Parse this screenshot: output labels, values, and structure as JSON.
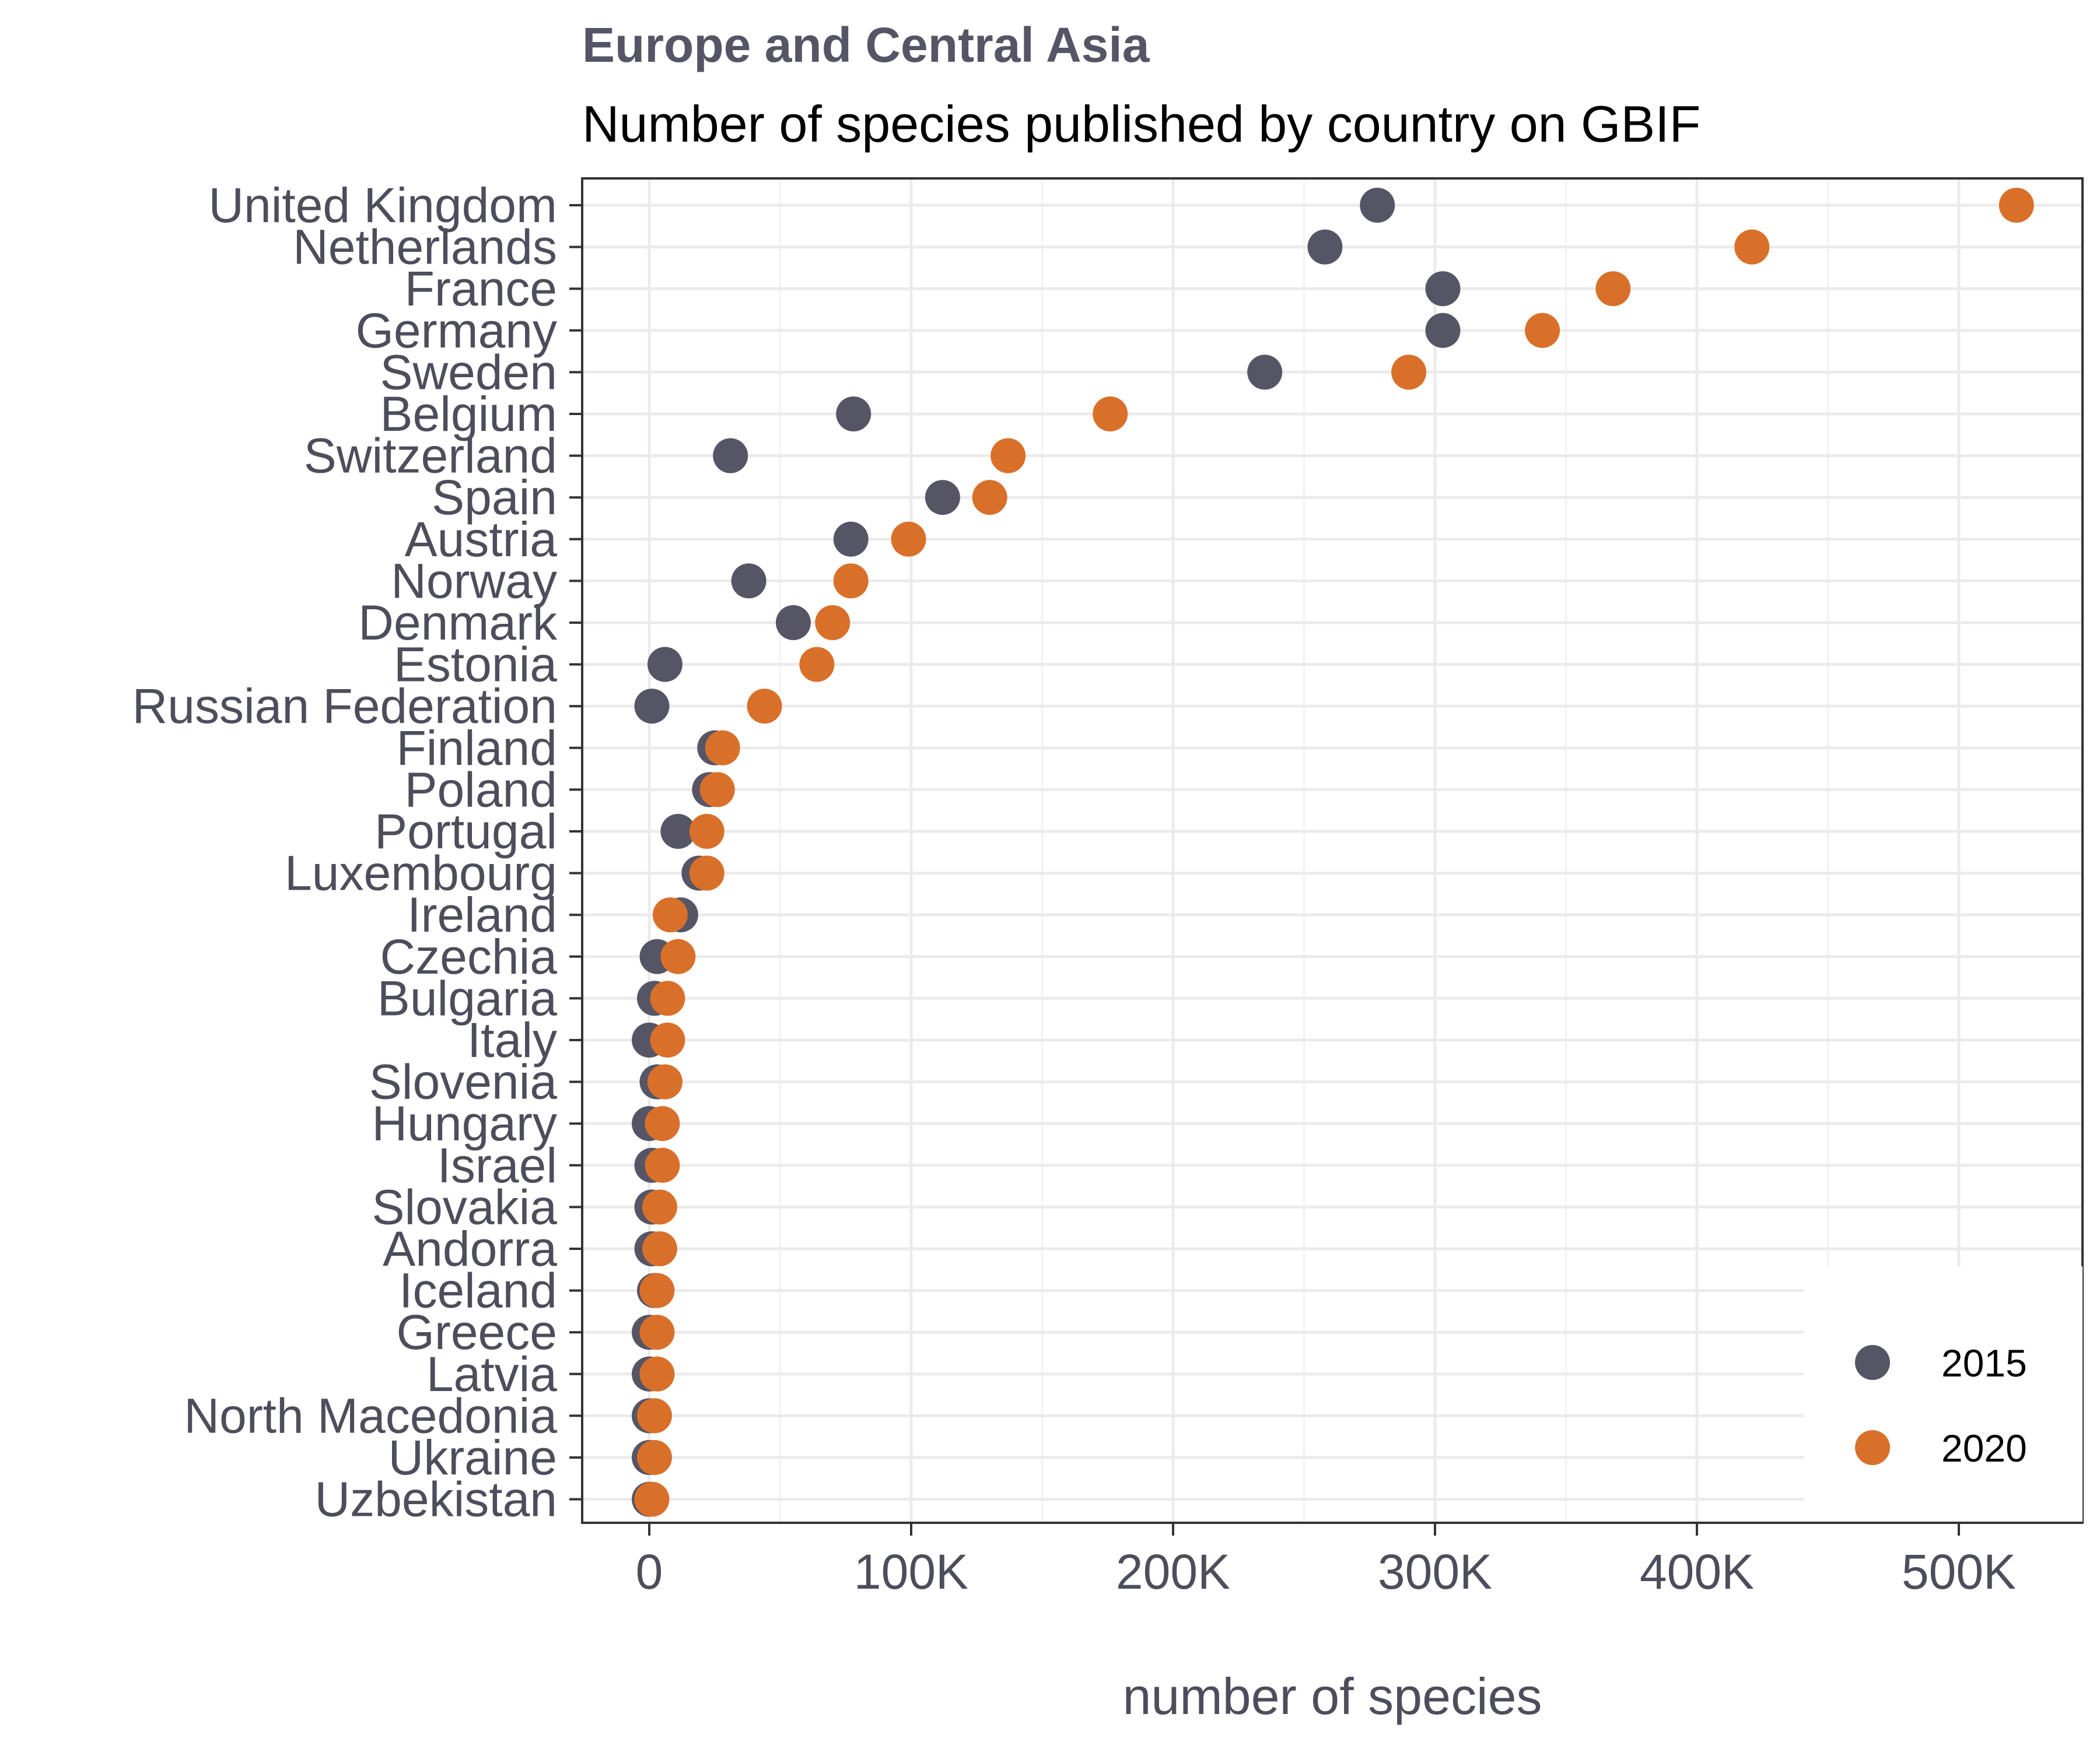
{
  "chart_data": {
    "type": "scatter",
    "title": "Europe and Central Asia",
    "subtitle": "Number of species published by country on GBIF",
    "xlabel": "number of species",
    "ylabel": "",
    "xlim": [
      -20000,
      545000
    ],
    "x_ticks": [
      0,
      100000,
      200000,
      300000,
      400000,
      500000
    ],
    "x_tick_labels": [
      "0",
      "100K",
      "200K",
      "300K",
      "400K",
      "500K"
    ],
    "categories": [
      "United Kingdom",
      "Netherlands",
      "France",
      "Germany",
      "Sweden",
      "Belgium",
      "Switzerland",
      "Spain",
      "Austria",
      "Norway",
      "Denmark",
      "Estonia",
      "Russian Federation",
      "Finland",
      "Poland",
      "Portugal",
      "Luxembourg",
      "Ireland",
      "Czechia",
      "Bulgaria",
      "Italy",
      "Slovenia",
      "Hungary",
      "Israel",
      "Slovakia",
      "Andorra",
      "Iceland",
      "Greece",
      "Latvia",
      "North Macedonia",
      "Ukraine",
      "Uzbekistan"
    ],
    "series": [
      {
        "name": "2015",
        "color": "#555566",
        "values": [
          278000,
          258000,
          303000,
          303000,
          235000,
          78000,
          31000,
          112000,
          77000,
          38000,
          55000,
          6000,
          1000,
          25000,
          23000,
          11000,
          19000,
          12000,
          3000,
          2000,
          0,
          3000,
          0,
          1000,
          1000,
          1000,
          2000,
          0,
          0,
          0,
          0,
          0
        ]
      },
      {
        "name": "2020",
        "color": "#d9702a",
        "values": [
          522000,
          421000,
          368000,
          341000,
          290000,
          176000,
          137000,
          130000,
          99000,
          77000,
          70000,
          64000,
          44000,
          28000,
          26000,
          22000,
          22000,
          8000,
          11000,
          7000,
          7000,
          6000,
          5000,
          5000,
          4000,
          4000,
          3000,
          3000,
          3000,
          2000,
          2000,
          1000
        ]
      }
    ],
    "grid": true,
    "legend_position": "bottom-right"
  }
}
